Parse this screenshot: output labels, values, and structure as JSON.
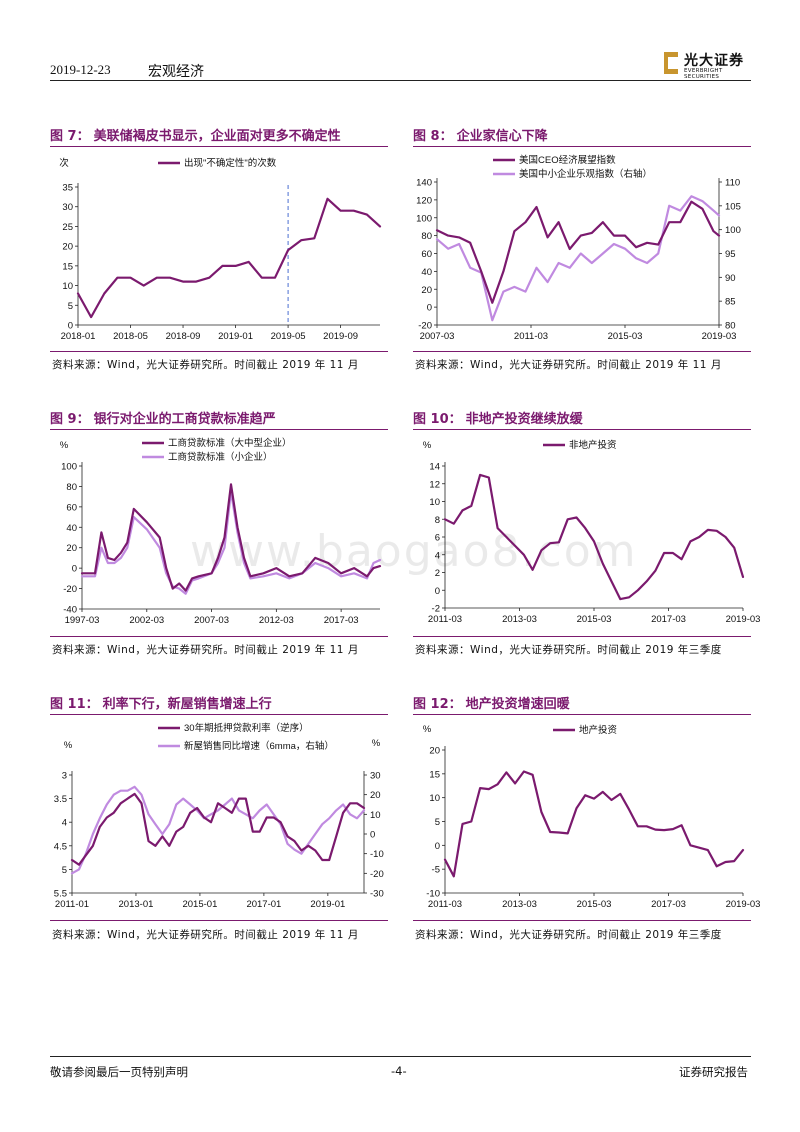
{
  "header": {
    "date": "2019-12-23",
    "section": "宏观经济",
    "brand_cn": "光大证券",
    "brand_en": "EVERBRIGHT SECURITIES"
  },
  "watermark": "www.baogao8.com",
  "footer": {
    "left": "敬请参阅最后一页特别声明",
    "page": "-4-",
    "right": "证券研究报告"
  },
  "colors": {
    "dark": "#7b1a6e",
    "light": "#c08ae0",
    "dashed": "#4a6fd0"
  },
  "figures": [
    {
      "fig_no": "图 7：",
      "title": "美联储褐皮书显示，企业面对更多不确定性",
      "source": "资料来源：Wind，光大证券研究所。时间截止 2019 年 11 月",
      "chart_data": {
        "type": "line",
        "unit_left": "次",
        "legend": [
          "出现\"不确定性\"的次数"
        ],
        "x_ticks": [
          "2018-01",
          "2018-05",
          "2018-09",
          "2019-01",
          "2019-05",
          "2019-09"
        ],
        "y_ticks": [
          0,
          5,
          10,
          15,
          20,
          25,
          30,
          35
        ],
        "ylim": [
          0,
          35
        ],
        "xlim": [
          0,
          23
        ],
        "vline_x": 16,
        "series": [
          {
            "name": "出现\"不确定性\"的次数",
            "axis": "left",
            "x": [
              0,
              1,
              2,
              3,
              4,
              5,
              6,
              7,
              8,
              9,
              10,
              11,
              12,
              13,
              14,
              15,
              16,
              17,
              18,
              19,
              20,
              21,
              22,
              23
            ],
            "values": [
              8,
              2,
              8,
              12,
              12,
              10,
              12,
              12,
              11,
              11,
              12,
              15,
              15,
              16,
              12,
              12,
              19,
              21.5,
              22,
              32,
              29,
              29,
              28,
              25
            ]
          }
        ]
      }
    },
    {
      "fig_no": "图 8：",
      "title": "企业家信心下降",
      "source": "资料来源：Wind，光大证券研究所。时间截止 2019 年 11 月",
      "chart_data": {
        "type": "line",
        "legend": [
          "美国CEO经济展望指数",
          "美国中小企业乐观指数（右轴）"
        ],
        "x_ticks": [
          "2007-03",
          "2011-03",
          "2015-03",
          "2019-03"
        ],
        "y_ticks": [
          -20,
          0,
          20,
          40,
          60,
          80,
          100,
          120,
          140
        ],
        "ylim": [
          -20,
          140
        ],
        "y2_ticks": [
          80,
          85,
          90,
          95,
          100,
          105,
          110
        ],
        "y2lim": [
          80,
          110
        ],
        "xlim": [
          0,
          12.75
        ],
        "series": [
          {
            "name": "美国CEO经济展望指数",
            "axis": "left",
            "x": [
              0,
              0.5,
              1,
              1.5,
              2,
              2.5,
              3,
              3.5,
              4,
              4.5,
              5,
              5.5,
              6,
              6.5,
              7,
              7.5,
              8,
              8.5,
              9,
              9.5,
              10,
              10.5,
              11,
              11.5,
              12,
              12.5,
              12.75
            ],
            "values": [
              86,
              80,
              78,
              72,
              40,
              5,
              40,
              85,
              95,
              112,
              78,
              95,
              65,
              80,
              83,
              95,
              80,
              80,
              67,
              72,
              70,
              95,
              95,
              118,
              110,
              85,
              80
            ]
          },
          {
            "name": "美国中小企业乐观指数（右轴）",
            "axis": "right",
            "x": [
              0,
              0.5,
              1,
              1.5,
              2,
              2.5,
              3,
              3.5,
              4,
              4.5,
              5,
              5.5,
              6,
              6.5,
              7,
              7.5,
              8,
              8.5,
              9,
              9.5,
              10,
              10.5,
              11,
              11.5,
              12,
              12.5,
              12.75
            ],
            "values": [
              98,
              96,
              97,
              92,
              91,
              81,
              87,
              88,
              87,
              92,
              89,
              93,
              92,
              95,
              93,
              95,
              97,
              96,
              94,
              93,
              95,
              105,
              104,
              107,
              106,
              104,
              103
            ]
          }
        ]
      }
    },
    {
      "fig_no": "图 9：",
      "title": "银行对企业的工商贷款标准趋严",
      "source": "资料来源：Wind，光大证券研究所。时间截止 2019 年 11 月",
      "chart_data": {
        "type": "line",
        "unit_left": "%",
        "legend": [
          "工商贷款标准（大中型企业）",
          "工商贷款标准（小企业）"
        ],
        "x_ticks": [
          "1997-03",
          "2002-03",
          "2007-03",
          "2012-03",
          "2017-03"
        ],
        "y_ticks": [
          -40,
          -20,
          0,
          20,
          40,
          60,
          80,
          100
        ],
        "ylim": [
          -40,
          100
        ],
        "xlim": [
          0,
          23
        ],
        "series": [
          {
            "name": "工商贷款标准（大中型企业）",
            "axis": "left",
            "x": [
              0,
              1,
              1.5,
              2,
              2.5,
              3,
              3.5,
              4,
              5,
              6,
              6.5,
              7,
              7.5,
              8,
              8.5,
              9,
              10,
              10.5,
              11,
              11.5,
              12,
              12.5,
              13,
              14,
              15,
              16,
              17,
              18,
              19,
              20,
              21,
              22,
              22.5,
              23
            ],
            "values": [
              -5,
              -5,
              35,
              10,
              8,
              15,
              25,
              58,
              45,
              30,
              0,
              -20,
              -15,
              -22,
              -10,
              -8,
              -5,
              10,
              30,
              82,
              40,
              10,
              -8,
              -5,
              0,
              -8,
              -5,
              10,
              5,
              -5,
              0,
              -8,
              0,
              2
            ]
          },
          {
            "name": "工商贷款标准（小企业）",
            "axis": "left",
            "x": [
              0,
              1,
              1.5,
              2,
              2.5,
              3,
              3.5,
              4,
              5,
              6,
              6.5,
              7,
              7.5,
              8,
              8.5,
              9,
              10,
              10.5,
              11,
              11.5,
              12,
              12.5,
              13,
              14,
              15,
              16,
              17,
              18,
              19,
              20,
              21,
              22,
              22.5,
              23
            ],
            "values": [
              -8,
              -8,
              20,
              5,
              5,
              10,
              20,
              50,
              38,
              20,
              -5,
              -18,
              -20,
              -25,
              -12,
              -10,
              -5,
              5,
              20,
              75,
              35,
              5,
              -10,
              -8,
              -5,
              -10,
              -5,
              5,
              0,
              -8,
              -5,
              -10,
              5,
              8
            ]
          }
        ]
      }
    },
    {
      "fig_no": "图 10：",
      "title": "非地产投资继续放缓",
      "source": "资料来源：Wind，光大证券研究所。时间截止 2019 年三季度",
      "chart_data": {
        "type": "line",
        "unit_left": "%",
        "legend": [
          "非地产投资"
        ],
        "x_ticks": [
          "2011-03",
          "2013-03",
          "2015-03",
          "2017-03",
          "2019-03"
        ],
        "y_ticks": [
          -2,
          0,
          2,
          4,
          6,
          8,
          10,
          12,
          14
        ],
        "ylim": [
          -2,
          14
        ],
        "xlim": [
          0,
          34
        ],
        "series": [
          {
            "name": "非地产投资",
            "axis": "left",
            "x": [
              0,
              1,
              2,
              3,
              4,
              5,
              6,
              7,
              8,
              9,
              10,
              11,
              12,
              13,
              14,
              15,
              16,
              17,
              18,
              19,
              20,
              21,
              22,
              23,
              24,
              25,
              26,
              27,
              28,
              29,
              30,
              31,
              32,
              33,
              34
            ],
            "values": [
              8,
              7.5,
              9,
              9.5,
              13,
              12.7,
              7,
              6,
              5,
              4,
              2.3,
              4.5,
              5.3,
              5.4,
              8,
              8.2,
              7,
              5.5,
              3,
              1,
              -1,
              -0.8,
              0,
              1,
              2.2,
              4.2,
              4.2,
              3.5,
              5.5,
              6,
              6.8,
              6.7,
              6,
              4.8,
              1.5
            ]
          }
        ]
      }
    },
    {
      "fig_no": "图 11：",
      "title": "利率下行，新屋销售增速上行",
      "source": "资料来源：Wind，光大证券研究所。时间截止 2019 年 11 月",
      "chart_data": {
        "type": "line",
        "unit_left": "%",
        "unit_right": "%",
        "legend": [
          "30年期抵押贷款利率（逆序）",
          "新屋销售同比增速（6mma，右轴）"
        ],
        "x_ticks": [
          "2011-01",
          "2013-01",
          "2015-01",
          "2017-01",
          "2019-01"
        ],
        "y_ticks": [
          3,
          3.5,
          4,
          4.5,
          5,
          5.5
        ],
        "ylim_inverted": [
          3,
          5.5
        ],
        "y2_ticks": [
          -30,
          -20,
          -10,
          0,
          10,
          20,
          30
        ],
        "y2lim": [
          -30,
          30
        ],
        "xlim": [
          0,
          21
        ],
        "series": [
          {
            "name": "30年期抵押贷款利率（逆序）",
            "axis": "left",
            "x": [
              0,
              0.5,
              1,
              1.5,
              2,
              2.5,
              3,
              3.5,
              4,
              4.5,
              5,
              5.5,
              6,
              6.5,
              7,
              7.5,
              8,
              8.5,
              9,
              9.5,
              10,
              10.5,
              11,
              11.5,
              12,
              12.5,
              13,
              13.5,
              14,
              14.5,
              15,
              15.5,
              16,
              16.5,
              17,
              17.5,
              18,
              18.5,
              19,
              19.5,
              20,
              20.5,
              21
            ],
            "values": [
              4.8,
              4.9,
              4.7,
              4.5,
              4.1,
              3.9,
              3.8,
              3.6,
              3.5,
              3.4,
              3.6,
              4.4,
              4.5,
              4.3,
              4.5,
              4.2,
              4.1,
              3.8,
              3.7,
              3.9,
              4.0,
              3.6,
              3.7,
              3.8,
              3.5,
              3.5,
              4.2,
              4.2,
              3.9,
              3.9,
              4.0,
              4.3,
              4.4,
              4.6,
              4.5,
              4.6,
              4.8,
              4.8,
              4.3,
              3.8,
              3.6,
              3.6,
              3.7
            ]
          },
          {
            "name": "新屋销售同比增速（6mma，右轴）",
            "axis": "right",
            "x": [
              0,
              0.5,
              1,
              1.5,
              2,
              2.5,
              3,
              3.5,
              4,
              4.5,
              5,
              5.5,
              6,
              6.5,
              7,
              7.5,
              8,
              8.5,
              9,
              9.5,
              10,
              10.5,
              11,
              11.5,
              12,
              12.5,
              13,
              13.5,
              14,
              14.5,
              15,
              15.5,
              16,
              16.5,
              17,
              17.5,
              18,
              18.5,
              19,
              19.5,
              20,
              20.5,
              21
            ],
            "values": [
              -20,
              -18,
              -10,
              0,
              8,
              15,
              20,
              22,
              22,
              24,
              20,
              10,
              5,
              0,
              5,
              15,
              18,
              15,
              12,
              8,
              10,
              12,
              15,
              18,
              12,
              10,
              8,
              12,
              15,
              10,
              5,
              -5,
              -8,
              -10,
              -5,
              0,
              5,
              8,
              12,
              15,
              10,
              8,
              12
            ]
          }
        ]
      }
    },
    {
      "fig_no": "图 12：",
      "title": "地产投资增速回暖",
      "source": "资料来源：Wind，光大证券研究所。时间截止 2019 年三季度",
      "chart_data": {
        "type": "line",
        "unit_left": "%",
        "legend": [
          "地产投资"
        ],
        "x_ticks": [
          "2011-03",
          "2013-03",
          "2015-03",
          "2017-03",
          "2019-03"
        ],
        "y_ticks": [
          -10,
          -5,
          0,
          5,
          10,
          15,
          20
        ],
        "ylim": [
          -10,
          20
        ],
        "xlim": [
          0,
          34
        ],
        "series": [
          {
            "name": "地产投资",
            "axis": "left",
            "x": [
              0,
              1,
              2,
              3,
              4,
              5,
              6,
              7,
              8,
              9,
              10,
              11,
              12,
              13,
              14,
              15,
              16,
              17,
              18,
              19,
              20,
              21,
              22,
              23,
              24,
              25,
              26,
              27,
              28,
              29,
              30,
              31,
              32,
              33,
              34
            ],
            "values": [
              -3,
              -6.5,
              4.5,
              5,
              12,
              11.8,
              12.8,
              15.3,
              13,
              15.5,
              14.8,
              7,
              2.8,
              2.7,
              2.5,
              7.8,
              10.5,
              9.8,
              11.2,
              9.5,
              10.8,
              7.5,
              4,
              4,
              3.3,
              3.2,
              3.4,
              4.2,
              0,
              -0.5,
              -1,
              -4.4,
              -3.5,
              -3.3,
              -1
            ]
          }
        ]
      }
    }
  ]
}
